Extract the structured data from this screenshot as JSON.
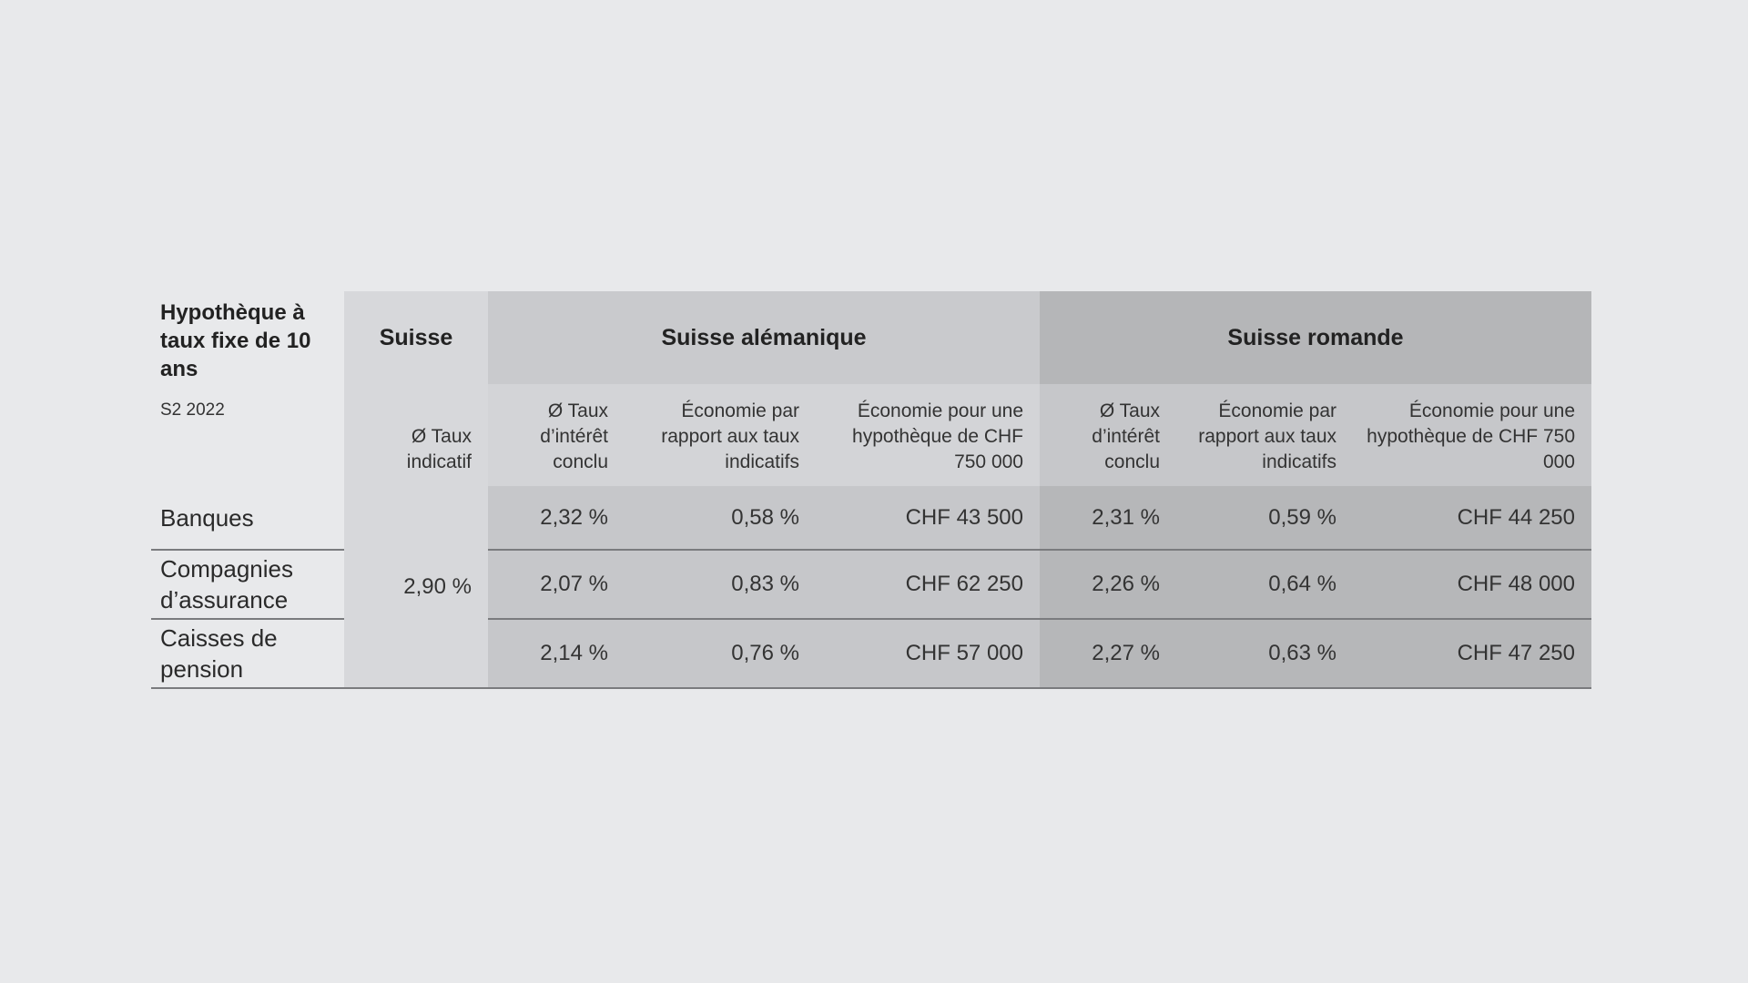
{
  "chart_data": {
    "type": "table",
    "title": "Hypothèque à taux fixe de 10 ans",
    "subtitle": "S2 2022",
    "groups": {
      "ch": "Suisse",
      "de": "Suisse alémanique",
      "fr": "Suisse romande"
    },
    "subheaders": {
      "ch": "Ø Taux indicatif",
      "rate": "Ø Taux d’intérêt conclu",
      "saving": "Économie par rapport aux taux indicatifs",
      "saving_chf": "Économie pour une hypothèque de CHF 750 000"
    },
    "suisse_indicative": "2,90 %",
    "rows": [
      {
        "label": "Banques",
        "de": [
          "2,32 %",
          "0,58 %",
          "CHF 43 500"
        ],
        "fr": [
          "2,31 %",
          "0,59 %",
          "CHF 44 250"
        ]
      },
      {
        "label": "Compagnies d’assurance",
        "de": [
          "2,07 %",
          "0,83 %",
          "CHF 62 250"
        ],
        "fr": [
          "2,26 %",
          "0,64 %",
          "CHF 48 000"
        ]
      },
      {
        "label": "Caisses de pension",
        "de": [
          "2,14 %",
          "0,76 %",
          "CHF 57 000"
        ],
        "fr": [
          "2,27 %",
          "0,63 %",
          "CHF 47 250"
        ]
      }
    ]
  }
}
